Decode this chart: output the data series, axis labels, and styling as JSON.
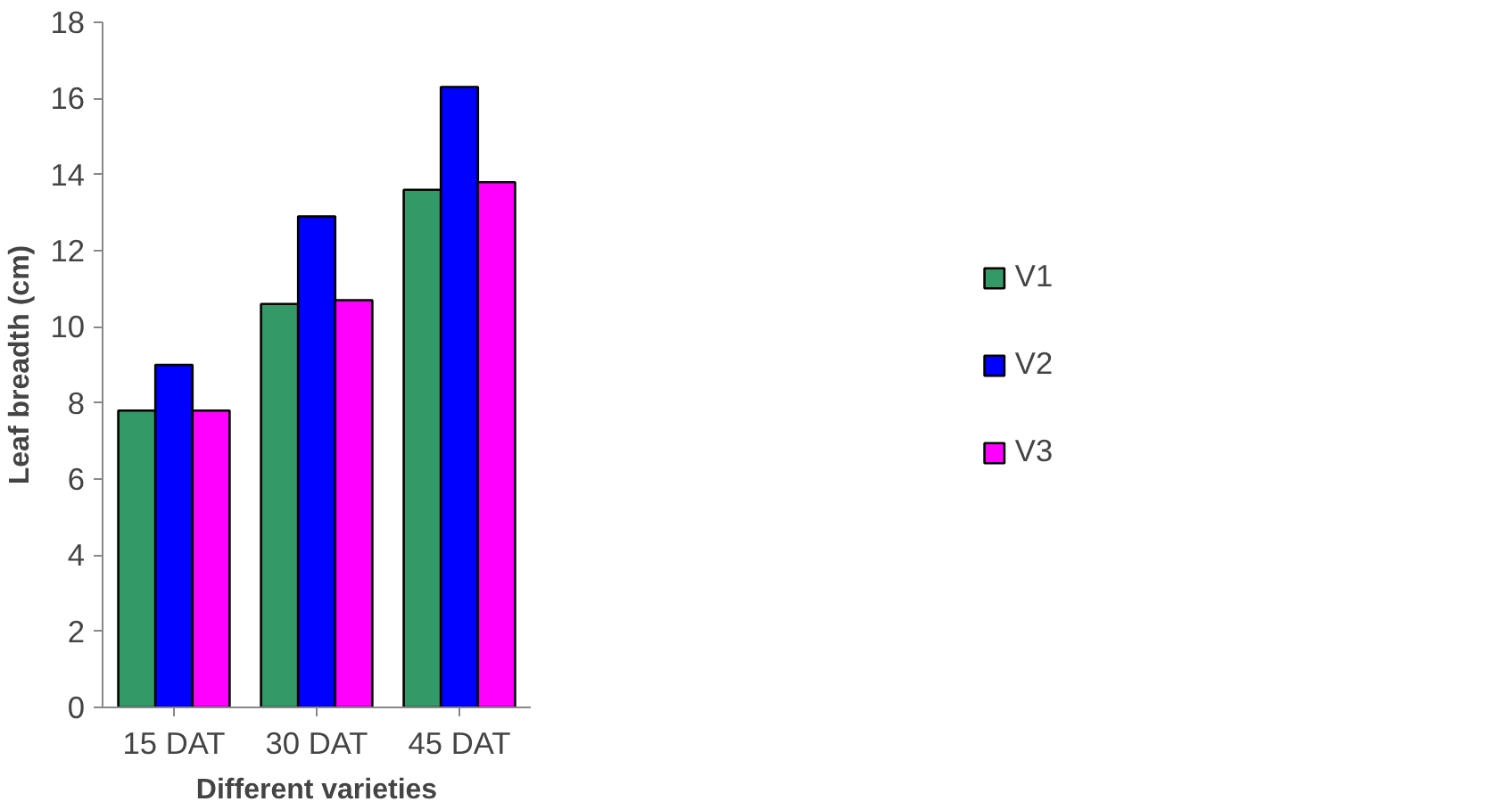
{
  "chart_data": {
    "type": "bar",
    "xlabel": "Different varieties",
    "ylabel": "Leaf breadth (cm)",
    "categories": [
      "15 DAT",
      "30 DAT",
      "45 DAT"
    ],
    "series": [
      {
        "name": "V1",
        "color": "#339966",
        "values": [
          7.8,
          10.6,
          13.6
        ]
      },
      {
        "name": "V2",
        "color": "#0000ff",
        "values": [
          9.0,
          12.9,
          16.3
        ]
      },
      {
        "name": "V3",
        "color": "#ff00ff",
        "values": [
          7.8,
          10.7,
          13.8
        ]
      }
    ],
    "ylim": [
      0,
      18
    ],
    "yticks": [
      0,
      2,
      4,
      6,
      8,
      10,
      12,
      14,
      16,
      18
    ],
    "grid": false,
    "legend": "right"
  }
}
